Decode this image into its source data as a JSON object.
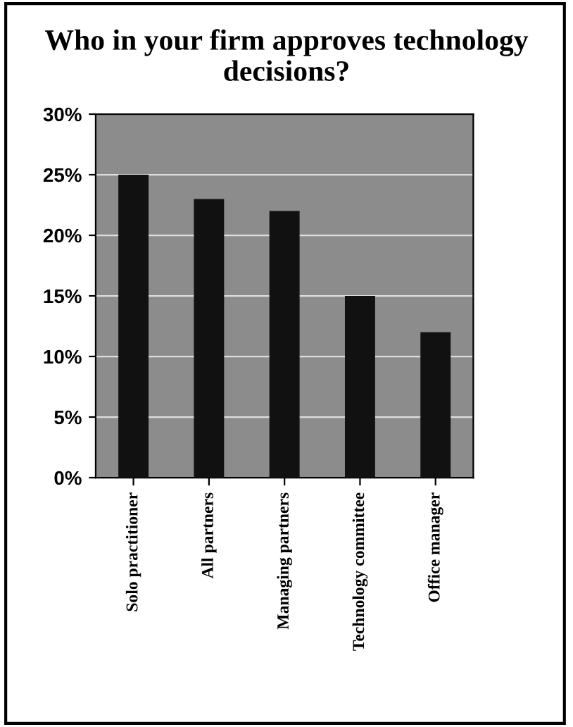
{
  "chart_data": {
    "type": "bar",
    "title": "Who in your firm approves technology decisions?",
    "categories": [
      "Solo practitioner",
      "All partners",
      "Managing partners",
      "Technology committee",
      "Office manager"
    ],
    "values": [
      25,
      23,
      22,
      15,
      12
    ],
    "color": "#111111",
    "ylim": [
      0,
      30
    ],
    "yticks": [
      {
        "value": 0,
        "label": "0%"
      },
      {
        "value": 5,
        "label": "5%"
      },
      {
        "value": 10,
        "label": "10%"
      },
      {
        "value": 15,
        "label": "15%"
      },
      {
        "value": 20,
        "label": "20%"
      },
      {
        "value": 25,
        "label": "25%"
      },
      {
        "value": 30,
        "label": "30%"
      }
    ],
    "grid": "y"
  }
}
